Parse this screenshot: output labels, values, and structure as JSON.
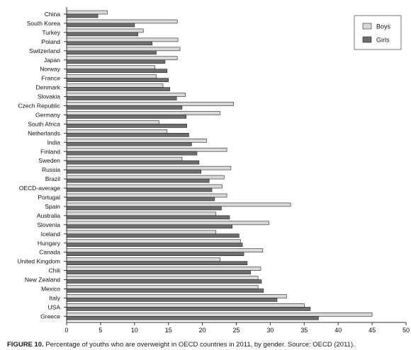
{
  "chart_data": {
    "type": "bar",
    "orientation": "horizontal",
    "categories": [
      "China",
      "South Korea",
      "Turkey",
      "Poland",
      "Switzerland",
      "Japan",
      "Norway",
      "France",
      "Denmark",
      "Slovakia",
      "Czech Republic",
      "Germany",
      "South Africa",
      "Netherlands",
      "India",
      "Finland",
      "Sweden",
      "Russia",
      "Brazil",
      "OECD-average",
      "Portugal",
      "Spain",
      "Australia",
      "Slovenia",
      "Iceland",
      "Hungary",
      "Canada",
      "United Kingdom",
      "Chili",
      "New Zealand",
      "Mexico",
      "Italy",
      "USA",
      "Greece"
    ],
    "series": [
      {
        "name": "Boys",
        "color": "#d9d9d9",
        "values": [
          6.0,
          16.3,
          11.3,
          16.4,
          16.7,
          16.3,
          13.0,
          13.2,
          14.2,
          17.5,
          24.6,
          22.6,
          13.6,
          14.8,
          20.6,
          23.6,
          17.0,
          24.2,
          23.2,
          22.9,
          23.6,
          33.0,
          22.0,
          29.8,
          22.0,
          25.6,
          28.9,
          22.6,
          28.6,
          28.2,
          28.2,
          32.4,
          35.0,
          45.0
        ]
      },
      {
        "name": "Girls",
        "color": "#6e6e6e",
        "values": [
          4.6,
          10.0,
          10.5,
          12.6,
          13.2,
          14.5,
          14.8,
          15.0,
          15.2,
          16.2,
          17.0,
          17.6,
          17.7,
          18.0,
          18.4,
          19.2,
          19.5,
          19.8,
          21.0,
          21.4,
          21.8,
          22.8,
          24.0,
          24.4,
          25.4,
          25.9,
          26.1,
          26.6,
          27.1,
          28.7,
          29.0,
          31.0,
          35.9,
          37.1
        ]
      }
    ],
    "xlim": [
      0,
      50
    ],
    "xticks": [
      0,
      5,
      10,
      15,
      20,
      25,
      30,
      35,
      40,
      45,
      50
    ],
    "grid": false,
    "legend_position": "top-right"
  },
  "caption": {
    "label": "FIGURE 10.",
    "text": " Percentage of youths who are overweight in OECD countries in 2011, by gender. Source: OECD (2011)."
  }
}
